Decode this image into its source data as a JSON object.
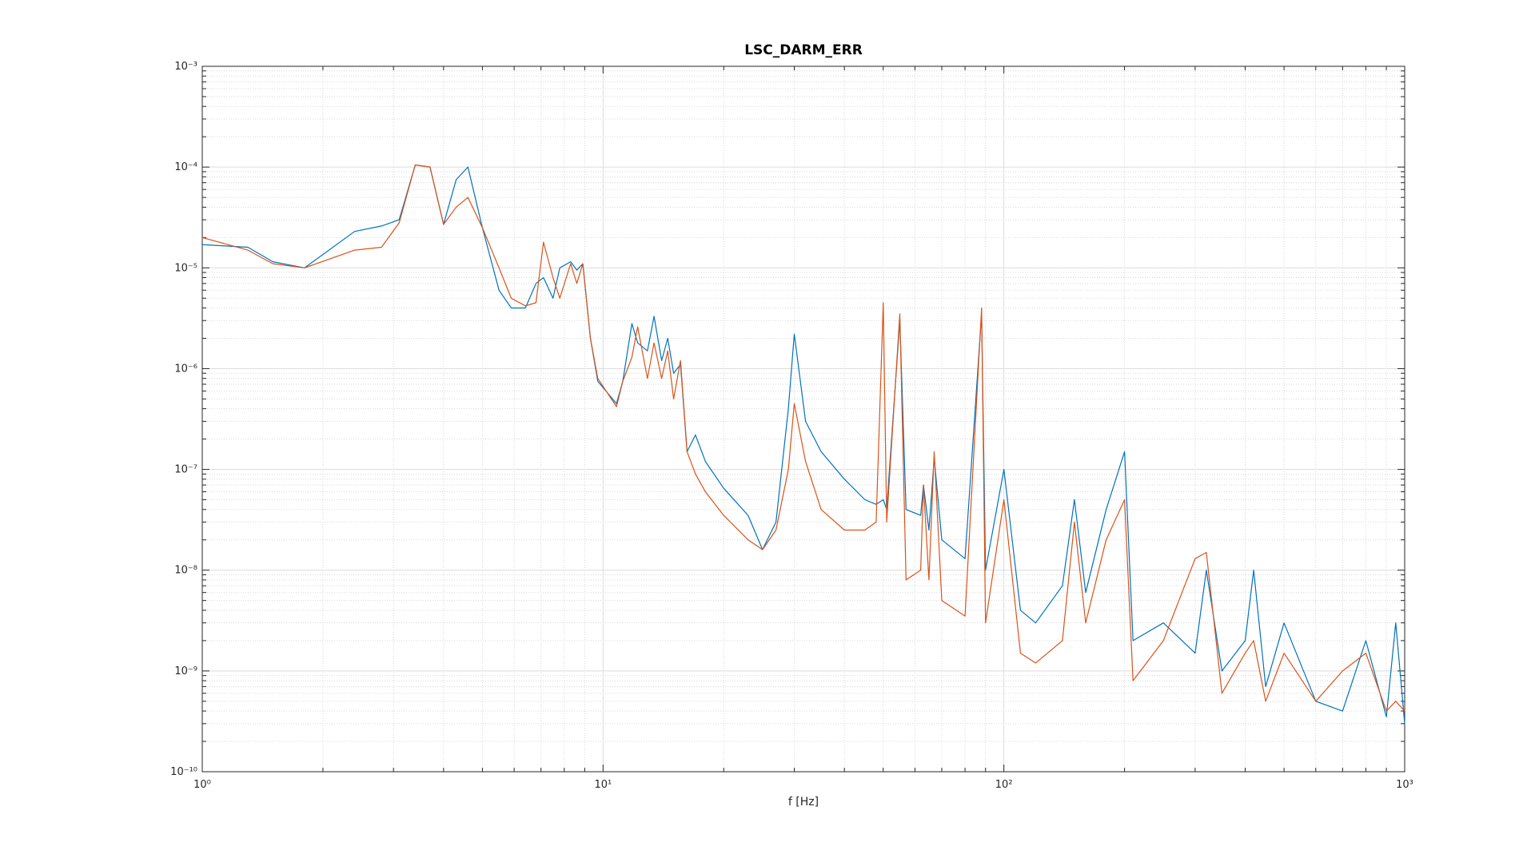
{
  "chart_data": {
    "type": "line",
    "title": "LSC_DARM_ERR",
    "x_label": "f [Hz]",
    "xscale": "log",
    "yscale": "log",
    "grid": true,
    "minor_grid": true,
    "xlim": [
      1,
      1000
    ],
    "ylim": [
      1e-10,
      0.001
    ],
    "xticks": [
      {
        "value": 1,
        "label": "10⁰"
      },
      {
        "value": 10,
        "label": "10¹"
      },
      {
        "value": 100,
        "label": "10²"
      },
      {
        "value": 1000,
        "label": "10³"
      }
    ],
    "yticks": [
      {
        "value": 1e-10,
        "label": "10⁻¹⁰"
      },
      {
        "value": 1e-09,
        "label": "10⁻⁹"
      },
      {
        "value": 1e-08,
        "label": "10⁻⁸"
      },
      {
        "value": 1e-07,
        "label": "10⁻⁷"
      },
      {
        "value": 1e-06,
        "label": "10⁻⁶"
      },
      {
        "value": 1e-05,
        "label": "10⁻⁵"
      },
      {
        "value": 0.0001,
        "label": "10⁻⁴"
      },
      {
        "value": 0.001,
        "label": "10⁻³"
      }
    ],
    "xminorticks": [
      2,
      3,
      4,
      5,
      6,
      7,
      8,
      9,
      20,
      30,
      40,
      50,
      60,
      70,
      80,
      90,
      200,
      300,
      400,
      500,
      600,
      700,
      800,
      900
    ],
    "yminorticks": [
      2e-10,
      3e-10,
      4e-10,
      5e-10,
      6e-10,
      7e-10,
      8e-10,
      9e-10,
      2e-09,
      3e-09,
      4e-09,
      5e-09,
      6e-09,
      7e-09,
      8e-09,
      9e-09,
      2e-08,
      3e-08,
      4e-08,
      5e-08,
      6e-08,
      7e-08,
      8e-08,
      9e-08,
      2e-07,
      3e-07,
      4e-07,
      5e-07,
      6e-07,
      7e-07,
      8e-07,
      9e-07,
      2e-06,
      3e-06,
      4e-06,
      5e-06,
      6e-06,
      7e-06,
      8e-06,
      9e-06,
      2e-05,
      3e-05,
      4e-05,
      5e-05,
      6e-05,
      7e-05,
      8e-05,
      9e-05,
      0.0002,
      0.0003,
      0.0004,
      0.0005,
      0.0006,
      0.0007,
      0.0008,
      0.0009
    ],
    "x": [
      1,
      1.3,
      1.5,
      1.8,
      2.4,
      2.8,
      3.1,
      3.4,
      3.7,
      4.0,
      4.3,
      4.6,
      5.0,
      5.5,
      5.9,
      6.4,
      6.8,
      7.1,
      7.5,
      7.8,
      8.3,
      8.6,
      8.9,
      9.3,
      9.7,
      10.8,
      11.2,
      11.8,
      12.2,
      12.9,
      13.4,
      14.0,
      14.5,
      15.0,
      15.6,
      16.2,
      17,
      18,
      20,
      23,
      25,
      27,
      29,
      30,
      32,
      35,
      40,
      45,
      48,
      50,
      51,
      55,
      57,
      62,
      63,
      65,
      67,
      70,
      80,
      88,
      90,
      100,
      110,
      120,
      140,
      150,
      160,
      180,
      200,
      210,
      250,
      300,
      320,
      350,
      400,
      420,
      450,
      500,
      600,
      700,
      800,
      900,
      950,
      1000
    ],
    "series": [
      {
        "color": "#0072bd",
        "values": [
          1.7e-05,
          1.6e-05,
          1.15e-05,
          1e-05,
          2.3e-05,
          2.6e-05,
          3e-05,
          0.000105,
          0.0001,
          2.7e-05,
          7.5e-05,
          0.0001,
          2.5e-05,
          6e-06,
          4e-06,
          4e-06,
          7e-06,
          8e-06,
          5e-06,
          1e-05,
          1.15e-05,
          9.5e-06,
          1.1e-05,
          2e-06,
          7.5e-07,
          4.5e-07,
          7.5e-07,
          2.8e-06,
          1.8e-06,
          1.5e-06,
          3.3e-06,
          1.2e-06,
          2e-06,
          9e-07,
          1.1e-06,
          1.5e-07,
          2.2e-07,
          1.2e-07,
          6.5e-08,
          3.5e-08,
          1.6e-08,
          3e-08,
          4e-07,
          2.2e-06,
          3e-07,
          1.5e-07,
          8e-08,
          5e-08,
          4.5e-08,
          5e-08,
          4e-08,
          3e-06,
          4e-08,
          3.5e-08,
          7e-08,
          2.5e-08,
          1.3e-07,
          2e-08,
          1.3e-08,
          3.5e-06,
          1e-08,
          1e-07,
          4e-09,
          3e-09,
          7e-09,
          5e-08,
          6e-09,
          4e-08,
          1.5e-07,
          2e-09,
          3e-09,
          1.5e-09,
          1e-08,
          1e-09,
          2e-09,
          1e-08,
          7e-10,
          3e-09,
          5e-10,
          4e-10,
          2e-09,
          3.5e-10,
          3e-09,
          3e-10
        ]
      },
      {
        "color": "#d95319",
        "values": [
          2e-05,
          1.5e-05,
          1.1e-05,
          1e-05,
          1.5e-05,
          1.6e-05,
          2.8e-05,
          0.000105,
          0.0001,
          2.7e-05,
          4e-05,
          5e-05,
          2.5e-05,
          1e-05,
          5e-06,
          4.2e-06,
          4.5e-06,
          1.8e-05,
          8e-06,
          5e-06,
          1.1e-05,
          7e-06,
          1.1e-05,
          2e-06,
          8e-07,
          4.2e-07,
          7.5e-07,
          1.3e-06,
          2.6e-06,
          8e-07,
          1.8e-06,
          8e-07,
          1.5e-06,
          5e-07,
          1.2e-06,
          1.5e-07,
          9e-08,
          6e-08,
          3.5e-08,
          2e-08,
          1.6e-08,
          2.5e-08,
          1e-07,
          4.5e-07,
          1.2e-07,
          4e-08,
          2.5e-08,
          2.5e-08,
          3e-08,
          4.5e-06,
          3e-08,
          3.5e-06,
          8e-09,
          1e-08,
          7e-08,
          8e-09,
          1.5e-07,
          5e-09,
          3.5e-09,
          4e-06,
          3e-09,
          5e-08,
          1.5e-09,
          1.2e-09,
          2e-09,
          3e-08,
          3e-09,
          2e-08,
          5e-08,
          8e-10,
          2e-09,
          1.3e-08,
          1.5e-08,
          6e-10,
          1.5e-09,
          2e-09,
          5e-10,
          1.5e-09,
          5e-10,
          1e-09,
          1.5e-09,
          4e-10,
          5e-10,
          4e-10
        ]
      }
    ]
  }
}
